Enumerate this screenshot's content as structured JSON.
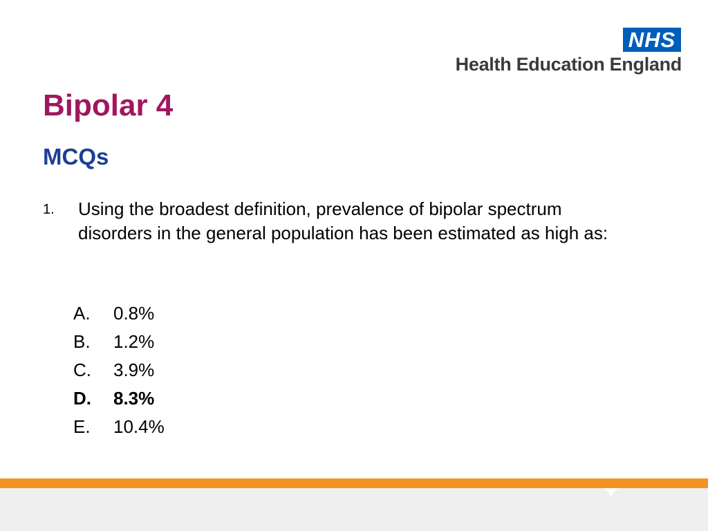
{
  "header": {
    "logo": "NHS",
    "organisation": "Health Education England"
  },
  "title": "Bipolar 4",
  "subtitle": "MCQs",
  "question": {
    "number": "1.",
    "text": "Using the broadest definition, prevalence of  bipolar spectrum disorders in the general population has been estimated as high as:",
    "options": [
      {
        "letter": "A.",
        "text": "0.8%"
      },
      {
        "letter": "B.",
        "text": "1.2%"
      },
      {
        "letter": "C.",
        "text": "3.9%"
      },
      {
        "letter": "D.",
        "text": "8.3%"
      },
      {
        "letter": "E.",
        "text": "10.4%"
      }
    ]
  }
}
